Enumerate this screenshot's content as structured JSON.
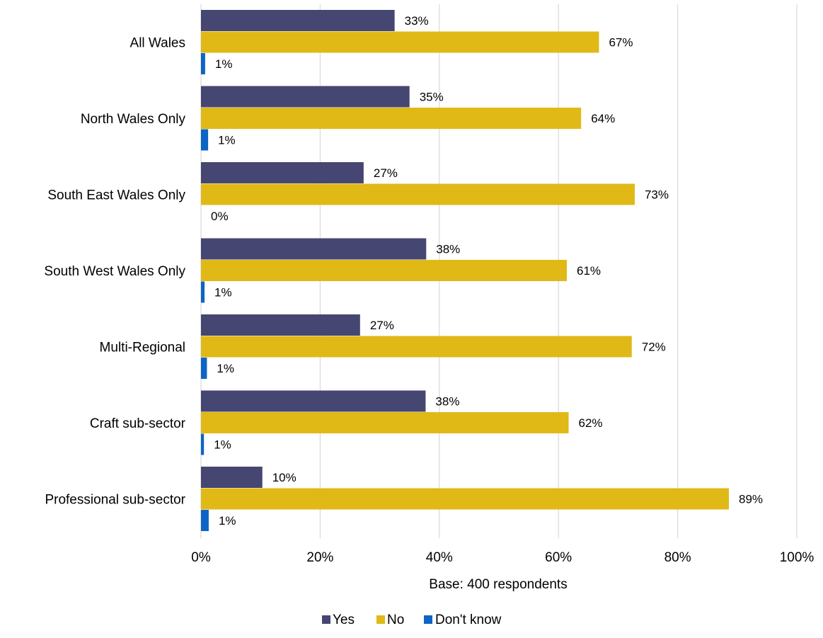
{
  "chart_data": {
    "type": "bar",
    "orientation": "horizontal",
    "categories": [
      "All Wales",
      "North Wales Only",
      "South East Wales Only",
      "South West Wales Only",
      "Multi-Regional",
      "Craft sub-sector",
      "Professional sub-sector"
    ],
    "series": [
      {
        "name": "Yes",
        "color": "#464673",
        "values": [
          32.5,
          35,
          27.3,
          37.8,
          26.7,
          37.7,
          10.3
        ],
        "labels": [
          "33%",
          "35%",
          "27%",
          "38%",
          "27%",
          "38%",
          "10%"
        ]
      },
      {
        "name": "No",
        "color": "#e0b917",
        "values": [
          66.8,
          63.8,
          72.8,
          61.4,
          72.3,
          61.7,
          88.6
        ],
        "labels": [
          "67%",
          "64%",
          "73%",
          "61%",
          "72%",
          "62%",
          "89%"
        ]
      },
      {
        "name": "Don't know",
        "color": "#0d64c4",
        "values": [
          0.7,
          1.2,
          0,
          0.6,
          1.0,
          0.5,
          1.3
        ],
        "labels": [
          "1%",
          "1%",
          "0%",
          "1%",
          "1%",
          "1%",
          "1%"
        ]
      }
    ],
    "xlabel": "Base: 400 respondents",
    "xlim": [
      0,
      100
    ],
    "xticks": [
      0,
      20,
      40,
      60,
      80,
      100
    ],
    "xtick_labels": [
      "0%",
      "20%",
      "40%",
      "60%",
      "80%",
      "100%"
    ],
    "grid": true,
    "legend_position": "bottom"
  }
}
